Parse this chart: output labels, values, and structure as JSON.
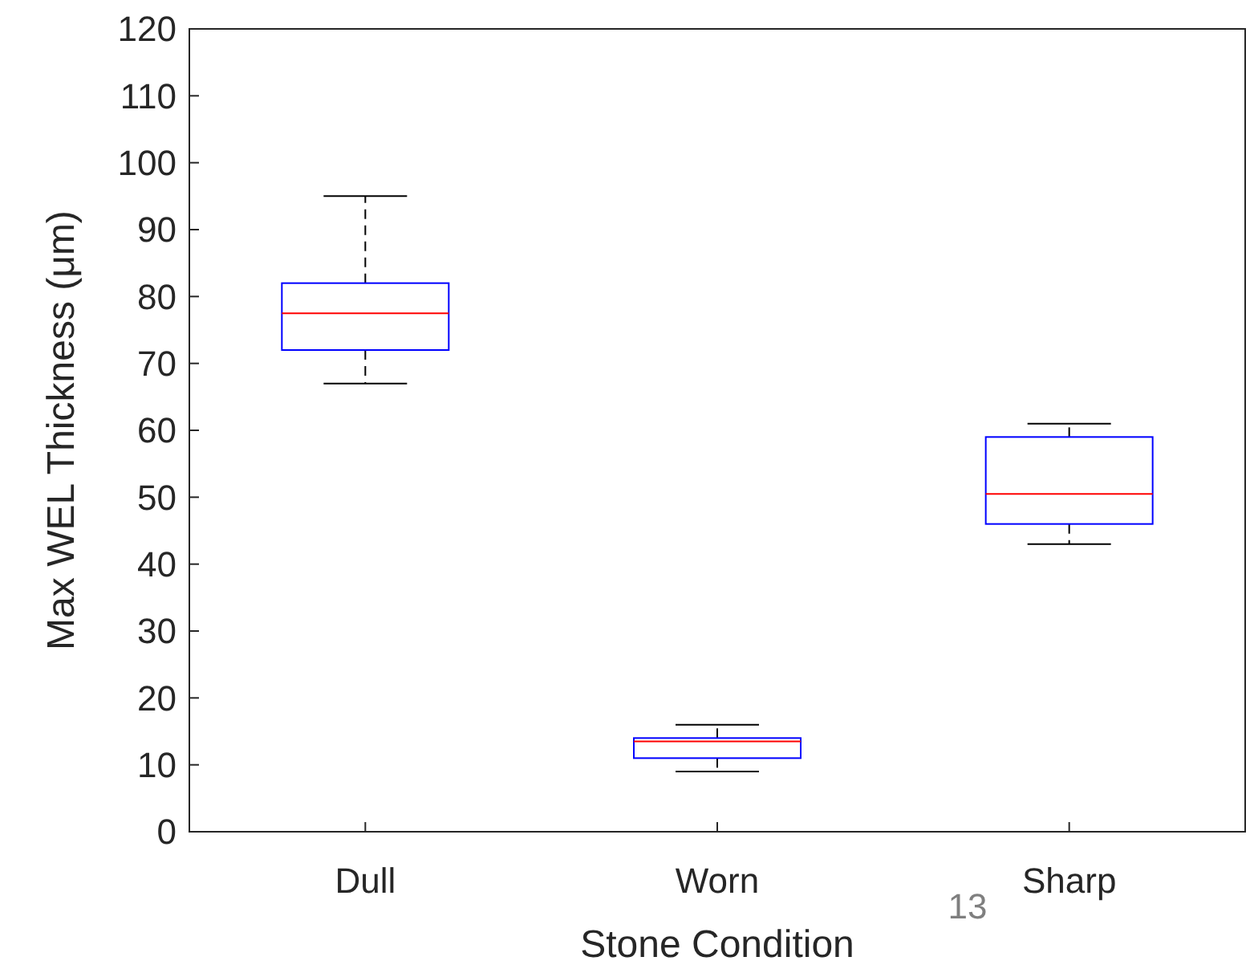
{
  "chart_data": {
    "type": "box",
    "xlabel": "Stone Condition",
    "ylabel": "Max WEL Thickness (μm)",
    "categories": [
      "Dull",
      "Worn",
      "Sharp"
    ],
    "boxes": [
      {
        "low": 67,
        "q1": 72,
        "median": 77.5,
        "q3": 82,
        "high": 95
      },
      {
        "low": 9,
        "q1": 11,
        "median": 13.5,
        "q3": 14,
        "high": 16
      },
      {
        "low": 43,
        "q1": 46,
        "median": 50.5,
        "q3": 59,
        "high": 61
      }
    ],
    "ylim": [
      0,
      120
    ],
    "yticks": [
      0,
      10,
      20,
      30,
      40,
      50,
      60,
      70,
      80,
      90,
      100,
      110,
      120
    ],
    "grid": false,
    "annotations": [
      "13"
    ]
  }
}
